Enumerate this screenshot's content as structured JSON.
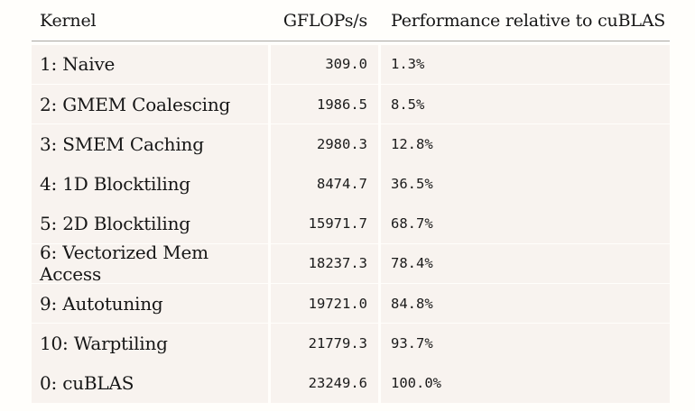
{
  "table": {
    "headers": {
      "kernel": "Kernel",
      "gflops": "GFLOPs/s",
      "relative": "Performance relative to cuBLAS"
    },
    "rows": [
      {
        "kernel": "1: Naive",
        "gflops": "309.0",
        "relative": "1.3%"
      },
      {
        "kernel": "2: GMEM Coalescing",
        "gflops": "1986.5",
        "relative": "8.5%"
      },
      {
        "kernel": "3: SMEM Caching",
        "gflops": "2980.3",
        "relative": "12.8%"
      },
      {
        "kernel": "4: 1D Blocktiling",
        "gflops": "8474.7",
        "relative": "36.5%"
      },
      {
        "kernel": "5: 2D Blocktiling",
        "gflops": "15971.7",
        "relative": "68.7%"
      },
      {
        "kernel": "6: Vectorized Mem Access",
        "gflops": "18237.3",
        "relative": "78.4%"
      },
      {
        "kernel": "9: Autotuning",
        "gflops": "19721.0",
        "relative": "84.8%"
      },
      {
        "kernel": "10: Warptiling",
        "gflops": "21779.3",
        "relative": "93.7%"
      },
      {
        "kernel": "0: cuBLAS",
        "gflops": "23249.6",
        "relative": "100.0%"
      }
    ]
  }
}
